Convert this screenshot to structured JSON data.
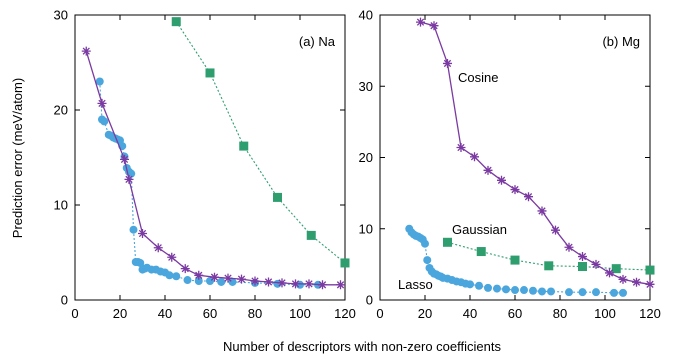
{
  "figure": {
    "xlabel": "Number of descriptors with non-zero coefficients",
    "ylabel": "Prediction error (meV/atom)"
  },
  "colors": {
    "cosine": "#7b3aa2",
    "gaussian": "#2e9e6e",
    "lasso": "#4aa6dc"
  },
  "chart_data": [
    {
      "type": "line",
      "panel_label": "(a) Na",
      "xlim": [
        0,
        120
      ],
      "ylim": [
        0,
        30
      ],
      "xticks": [
        0,
        20,
        40,
        60,
        80,
        100,
        120
      ],
      "yticks": [
        0,
        10,
        20,
        30
      ],
      "series": [
        {
          "key": "cosine",
          "marker": "star",
          "line": "solid",
          "x": [
            5,
            12,
            22,
            24,
            30,
            37,
            43,
            49,
            55,
            62,
            68,
            74,
            80,
            86,
            92,
            98,
            104,
            110,
            118
          ],
          "y": [
            26.2,
            20.7,
            14.8,
            12.7,
            7.0,
            5.5,
            4.5,
            3.3,
            2.6,
            2.4,
            2.3,
            2.2,
            2.0,
            1.9,
            1.8,
            1.7,
            1.7,
            1.6,
            1.6
          ]
        },
        {
          "key": "gaussian",
          "marker": "square",
          "line": "dotted",
          "x": [
            45,
            60,
            75,
            90,
            105,
            120
          ],
          "y": [
            29.3,
            23.9,
            16.2,
            10.8,
            6.8,
            3.9
          ]
        },
        {
          "key": "lasso",
          "marker": "circle",
          "line": "dotted",
          "x": [
            11,
            12,
            13,
            15,
            16,
            17,
            18,
            19,
            20,
            21,
            22,
            23,
            24,
            25,
            26,
            27,
            28,
            29,
            30,
            31,
            32,
            34,
            36,
            38,
            40,
            42,
            45,
            50,
            55,
            60,
            65,
            70,
            80,
            90,
            100,
            108
          ],
          "y": [
            23.0,
            19.0,
            18.8,
            17.4,
            17.3,
            17.1,
            17.0,
            16.9,
            16.8,
            16.2,
            15.1,
            13.9,
            13.5,
            13.3,
            7.4,
            4.0,
            4.0,
            3.9,
            3.2,
            3.3,
            3.4,
            3.2,
            3.2,
            3.0,
            2.9,
            2.6,
            2.5,
            2.1,
            2.0,
            2.0,
            1.9,
            1.9,
            1.8,
            1.7,
            1.6,
            1.6
          ]
        }
      ]
    },
    {
      "type": "line",
      "panel_label": "(b) Mg",
      "xlim": [
        0,
        120
      ],
      "ylim": [
        0,
        40
      ],
      "xticks": [
        0,
        20,
        40,
        60,
        80,
        100,
        120
      ],
      "yticks": [
        0,
        10,
        20,
        30,
        40
      ],
      "series": [
        {
          "key": "cosine",
          "name": "Cosine",
          "marker": "star",
          "line": "solid",
          "x": [
            18,
            24,
            30,
            36,
            42,
            48,
            54,
            60,
            66,
            72,
            78,
            84,
            90,
            96,
            102,
            108,
            114,
            120
          ],
          "y": [
            39.0,
            38.5,
            33.2,
            21.4,
            20.1,
            18.2,
            16.8,
            15.5,
            14.5,
            12.5,
            9.8,
            7.4,
            6.1,
            5.0,
            3.8,
            2.9,
            2.5,
            2.2
          ]
        },
        {
          "key": "gaussian",
          "name": "Gaussian",
          "marker": "square",
          "line": "dotted",
          "x": [
            30,
            45,
            60,
            75,
            90,
            105,
            120
          ],
          "y": [
            8.1,
            6.8,
            5.6,
            4.8,
            4.7,
            4.4,
            4.2
          ]
        },
        {
          "key": "lasso",
          "name": "Lasso",
          "marker": "circle",
          "line": "dotted",
          "x": [
            13,
            14,
            15,
            16,
            17,
            18,
            19,
            20,
            21,
            22,
            23,
            24,
            25,
            26,
            27,
            28,
            30,
            32,
            34,
            36,
            38,
            40,
            44,
            48,
            52,
            56,
            60,
            64,
            68,
            72,
            76,
            84,
            90,
            96,
            104,
            108
          ],
          "y": [
            10.0,
            9.5,
            9.2,
            9.0,
            8.9,
            8.7,
            8.5,
            7.9,
            5.6,
            4.5,
            4.0,
            3.7,
            3.6,
            3.4,
            3.3,
            3.1,
            3.0,
            2.8,
            2.6,
            2.5,
            2.3,
            2.2,
            2.0,
            1.7,
            1.6,
            1.5,
            1.4,
            1.4,
            1.3,
            1.2,
            1.2,
            1.1,
            1.1,
            1.1,
            1.0,
            1.0
          ]
        }
      ]
    }
  ]
}
